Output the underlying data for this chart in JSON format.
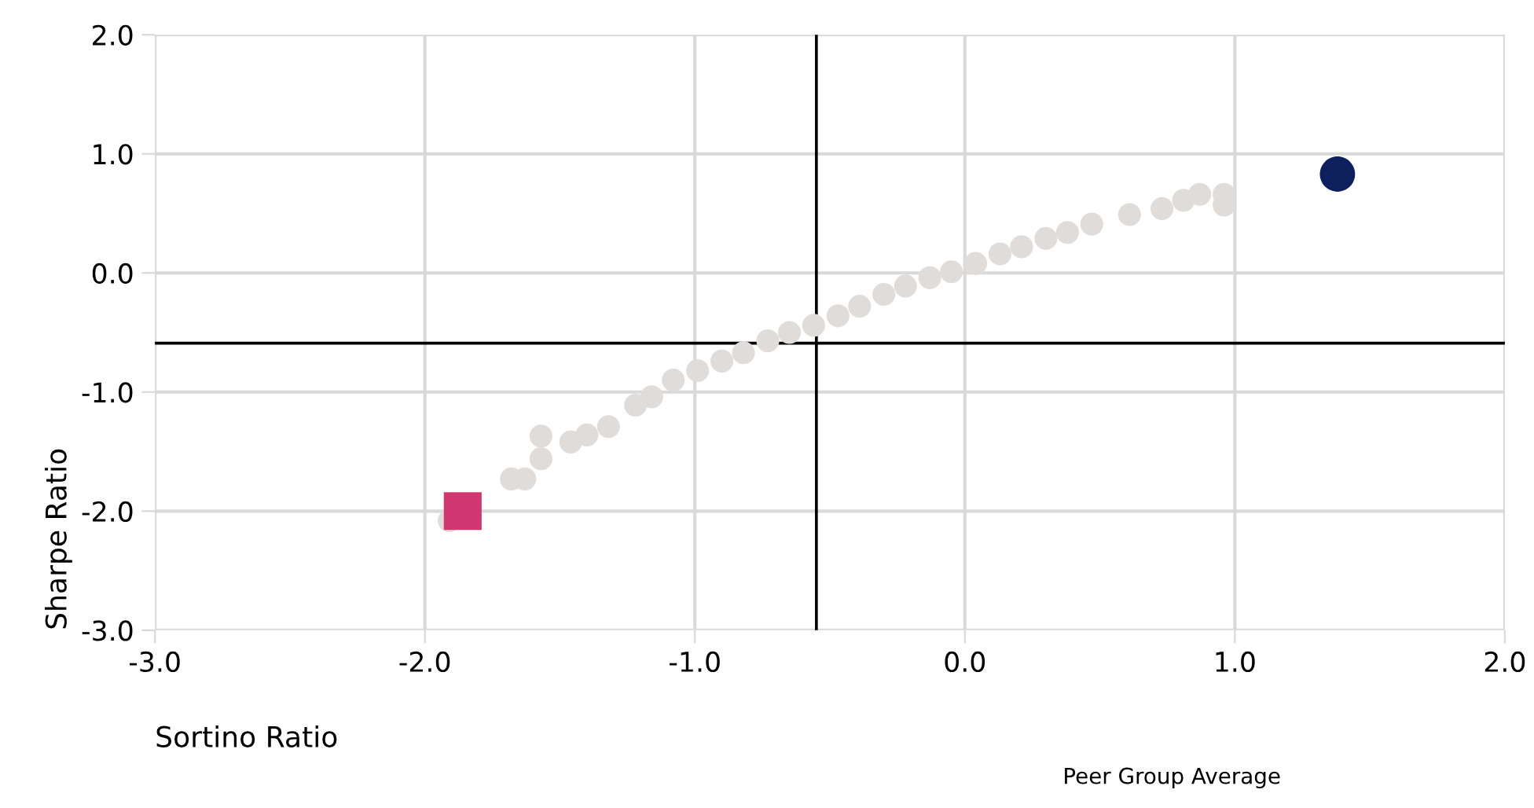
{
  "chart_data": {
    "type": "scatter",
    "xlabel": "Sortino Ratio",
    "ylabel": "Sharpe Ratio",
    "xlim": [
      -3,
      2
    ],
    "ylim": [
      -3,
      2
    ],
    "xticks": [
      {
        "value": -3,
        "label": "-3.0"
      },
      {
        "value": -2,
        "label": "-2.0"
      },
      {
        "value": -1,
        "label": "-1.0"
      },
      {
        "value": 0,
        "label": "0.0"
      },
      {
        "value": 1,
        "label": "1.0"
      },
      {
        "value": 2,
        "label": "2.0"
      }
    ],
    "yticks": [
      {
        "value": -3,
        "label": "-3.0"
      },
      {
        "value": -2,
        "label": "-2.0"
      },
      {
        "value": -1,
        "label": "-1.0"
      },
      {
        "value": 0,
        "label": "0.0"
      },
      {
        "value": 1,
        "label": "1.0"
      },
      {
        "value": 2,
        "label": "2.0"
      }
    ],
    "grid": true,
    "legend": "bottom",
    "series": [
      {
        "color": "#e0dcd9",
        "marker": "circle",
        "x": [
          -1.91,
          -1.68,
          -1.63,
          -1.57,
          -1.57,
          -1.46,
          -1.4,
          -1.32,
          -1.22,
          -1.16,
          -1.08,
          -0.99,
          -0.9,
          -0.82,
          -0.73,
          -0.65,
          -0.56,
          -0.47,
          -0.39,
          -0.3,
          -0.22,
          -0.13,
          -0.05,
          0.04,
          0.13,
          0.21,
          0.3,
          0.38,
          0.47,
          0.61,
          0.73,
          0.81,
          0.87,
          0.96,
          0.96
        ],
        "values": [
          -2.08,
          -1.73,
          -1.73,
          -1.37,
          -1.56,
          -1.42,
          -1.36,
          -1.29,
          -1.11,
          -1.04,
          -0.9,
          -0.82,
          -0.74,
          -0.67,
          -0.57,
          -0.5,
          -0.44,
          -0.36,
          -0.28,
          -0.18,
          -0.11,
          -0.04,
          0.01,
          0.08,
          0.16,
          0.22,
          0.29,
          0.34,
          0.41,
          0.49,
          0.54,
          0.61,
          0.66,
          0.66,
          0.57
        ]
      },
      {
        "color": "#0d1f5c",
        "marker": "circle",
        "x": [
          1.38
        ],
        "values": [
          0.83
        ]
      },
      {
        "color": "#d0366f",
        "marker": "square",
        "x": [
          -1.86
        ],
        "values": [
          -2.0
        ]
      }
    ],
    "ref_lines": [
      {
        "axis": "x",
        "value": -0.55,
        "color": "#000000"
      },
      {
        "axis": "y",
        "value": -0.59,
        "color": "#000000",
        "label": "Peer Group Average"
      }
    ]
  }
}
